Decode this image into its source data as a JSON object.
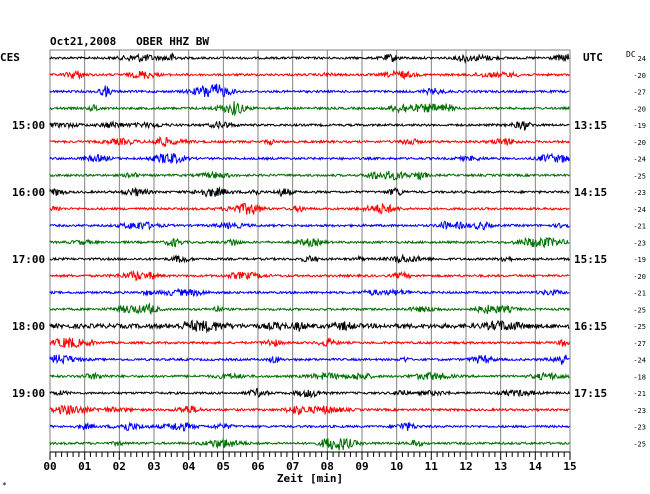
{
  "chart_data": {
    "type": "line",
    "title": "Oct21,2008   OBER HHZ BW",
    "left_axis_label": "CES",
    "right_axis_label": "UTC",
    "dc_label": "DC",
    "xlabel": "Zeit [min]",
    "x_ticks": [
      "00",
      "01",
      "02",
      "03",
      "04",
      "05",
      "06",
      "07",
      "08",
      "09",
      "10",
      "11",
      "12",
      "13",
      "14",
      "15"
    ],
    "xlim": [
      0,
      15
    ],
    "grid": true,
    "left_hour_labels": [
      {
        "row": 4,
        "label": "15:00"
      },
      {
        "row": 8,
        "label": "16:00"
      },
      {
        "row": 12,
        "label": "17:00"
      },
      {
        "row": 16,
        "label": "18:00"
      },
      {
        "row": 20,
        "label": "19:00"
      }
    ],
    "right_hour_labels": [
      {
        "row": 4,
        "label": "13:15"
      },
      {
        "row": 8,
        "label": "14:15"
      },
      {
        "row": 12,
        "label": "15:15"
      },
      {
        "row": 16,
        "label": "16:15"
      },
      {
        "row": 20,
        "label": "17:15"
      }
    ],
    "dc_offsets": [
      "24",
      "-20",
      "-27",
      "-20",
      "-19",
      "-20",
      "-24",
      "-25",
      "-23",
      "-24",
      "-21",
      "-23",
      "-19",
      "-20",
      "-21",
      "-25",
      "-25",
      "-27",
      "-24",
      "-18",
      "-21",
      "-23",
      "-23",
      "-25"
    ],
    "trace_colors": [
      "#000000",
      "#ff0000",
      "#0000ff",
      "#007000"
    ],
    "series_count": 24
  },
  "corner_mark": "*"
}
